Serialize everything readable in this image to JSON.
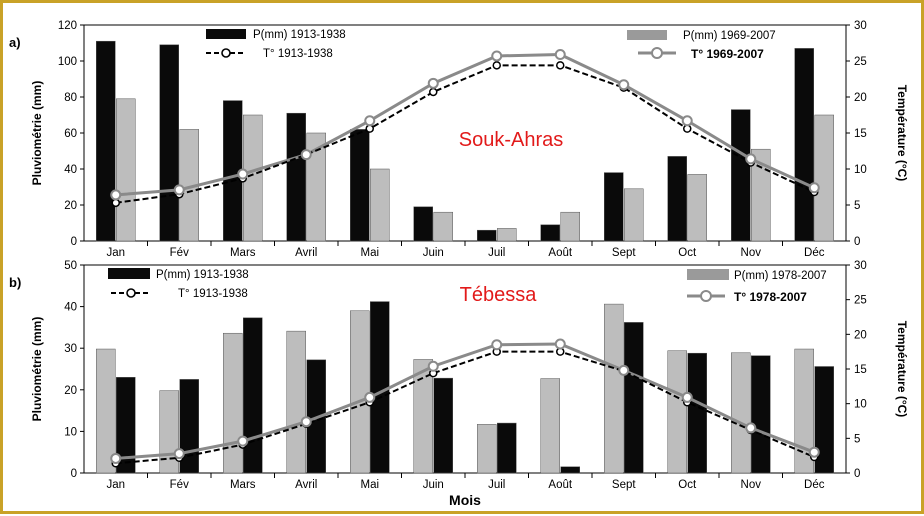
{
  "xlabel": "Mois",
  "months": [
    "Jan",
    "Fév",
    "Mars",
    "Avril",
    "Mai",
    "Juin",
    "Juil",
    "Août",
    "Sept",
    "Oct",
    "Nov",
    "Déc"
  ],
  "chart_data": [
    {
      "panel": "a)",
      "type": "bar",
      "station": "Souk-Ahras",
      "ylabel": "Pluviométrie (mm)",
      "y2label": "Température (°C)",
      "ylim": [
        0,
        120
      ],
      "yticks": [
        "0",
        "20",
        "40",
        "60",
        "80",
        "100",
        "120"
      ],
      "y2lim": [
        0,
        30
      ],
      "y2ticks": [
        "0",
        "5",
        "10",
        "15",
        "20",
        "25",
        "30"
      ],
      "legend_old_p": "P(mm) 1913-1938",
      "legend_old_t": "T° 1913-1938",
      "legend_new_p": "P(mm) 1969-2007",
      "legend_new_t": "T° 1969-2007",
      "p_old": [
        111,
        109,
        78,
        71,
        62,
        19,
        6,
        9,
        38,
        47,
        73,
        107
      ],
      "p_new": [
        79,
        62,
        70,
        60,
        40,
        16,
        7,
        16,
        29,
        37,
        51,
        70
      ],
      "t_old": [
        5.3,
        6.5,
        8.7,
        12,
        15.6,
        20.7,
        24.4,
        24.4,
        21.3,
        15.6,
        10.9,
        6.8
      ],
      "t_new": [
        6.4,
        7.1,
        9.3,
        12,
        16.7,
        21.9,
        25.7,
        25.9,
        21.7,
        16.7,
        11.4,
        7.4
      ],
      "old_bar_first": true
    },
    {
      "panel": "b)",
      "type": "bar",
      "station": "Tébessa",
      "ylabel": "Pluviométrie (mm)",
      "y2label": "Température (°C)",
      "ylim": [
        0,
        50
      ],
      "yticks": [
        "0",
        "10",
        "20",
        "30",
        "40",
        "50"
      ],
      "y2lim": [
        0,
        30
      ],
      "y2ticks": [
        "0",
        "5",
        "10",
        "15",
        "20",
        "25",
        "30"
      ],
      "legend_old_p": "P(mm) 1913-1938",
      "legend_old_t": "T° 1913-1938",
      "legend_new_p": "P(mm) 1978-2007",
      "legend_new_t": "T° 1978-2007",
      "p_old": [
        23,
        22.5,
        37.3,
        27.2,
        41.2,
        22.8,
        12,
        1.5,
        36.2,
        28.8,
        28.2,
        25.6
      ],
      "p_new": [
        29.8,
        19.8,
        33.6,
        34.1,
        39,
        27.3,
        11.7,
        22.7,
        40.6,
        29.4,
        28.9,
        29.8
      ],
      "t_old": [
        1.4,
        2.2,
        4.1,
        7.1,
        10.2,
        14.4,
        17.5,
        17.5,
        14.7,
        10.2,
        6.2,
        2.3
      ],
      "t_new": [
        2.1,
        2.8,
        4.6,
        7.4,
        10.9,
        15.4,
        18.5,
        18.6,
        14.8,
        10.9,
        6.5,
        3.0
      ],
      "old_bar_first": false
    }
  ],
  "colors": {
    "bar_old": "#0a0a0a",
    "bar_new": "#bdbdbd",
    "line_old": "#000000",
    "line_new": "#8a8a8a",
    "station": "#e21a1a",
    "frame": "#c9a227"
  }
}
